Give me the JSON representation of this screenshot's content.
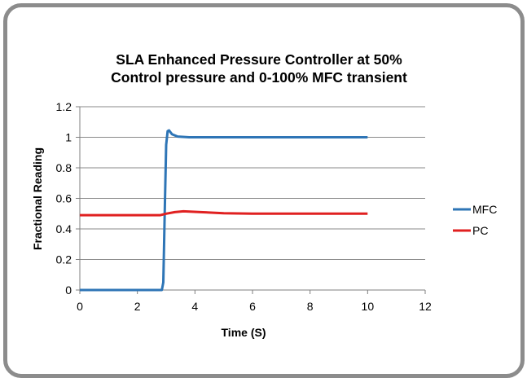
{
  "chart_data": {
    "type": "line",
    "title_lines": [
      "SLA Enhanced Pressure Controller at 50%",
      "Control pressure and 0-100%  MFC transient"
    ],
    "xlabel": "Time (S)",
    "ylabel": "Fractional Reading",
    "xlim": [
      0,
      12
    ],
    "ylim": [
      0,
      1.2
    ],
    "x_ticks": [
      "0",
      "2",
      "4",
      "6",
      "8",
      "10",
      "12"
    ],
    "y_ticks": [
      "0",
      "0.2",
      "0.4",
      "0.6",
      "0.8",
      "1",
      "1.2"
    ],
    "grid": "horizontal",
    "legend_position": "right",
    "series": [
      {
        "name": "MFC",
        "color": "#2e75b6",
        "points": [
          [
            0,
            0
          ],
          [
            2.85,
            0
          ],
          [
            2.9,
            0.05
          ],
          [
            2.95,
            0.5
          ],
          [
            3.0,
            0.95
          ],
          [
            3.05,
            1.04
          ],
          [
            3.1,
            1.045
          ],
          [
            3.2,
            1.02
          ],
          [
            3.4,
            1.005
          ],
          [
            3.8,
            1.0
          ],
          [
            5,
            1.0
          ],
          [
            7,
            1.0
          ],
          [
            10,
            1.0
          ]
        ]
      },
      {
        "name": "PC",
        "color": "#e02020",
        "points": [
          [
            0,
            0.49
          ],
          [
            2.8,
            0.49
          ],
          [
            3.0,
            0.5
          ],
          [
            3.3,
            0.51
          ],
          [
            3.6,
            0.515
          ],
          [
            4.2,
            0.51
          ],
          [
            5,
            0.503
          ],
          [
            6,
            0.5
          ],
          [
            8,
            0.5
          ],
          [
            10,
            0.5
          ]
        ]
      }
    ]
  }
}
